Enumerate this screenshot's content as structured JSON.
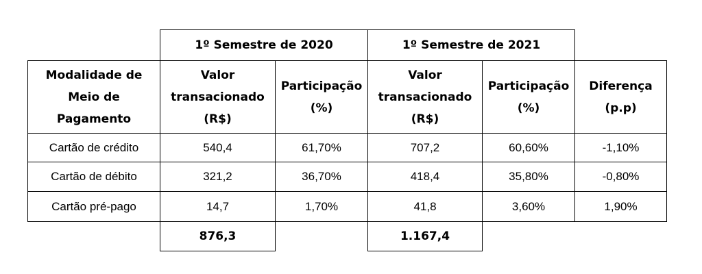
{
  "semesters": [
    {
      "label": "1º Semestre de 2020"
    },
    {
      "label": "1º Semestre de 2021"
    }
  ],
  "headers": {
    "modality": "Modalidade de\nMeio de\nPagamento",
    "value_2020": "Valor\ntransacionado\n(R$)",
    "share_2020": "Participação\n(%)",
    "value_2021": "Valor\ntransacionado\n(R$)",
    "share_2021": "Participação\n(%)",
    "difference": "Diferença\n(p.p)"
  },
  "rows": [
    {
      "modality": "Cartão de crédito",
      "value_2020": "540,4",
      "share_2020": "61,70%",
      "value_2021": "707,2",
      "share_2021": "60,60%",
      "difference": "-1,10%"
    },
    {
      "modality": "Cartão de débito",
      "value_2020": "321,2",
      "share_2020": "36,70%",
      "value_2021": "418,4",
      "share_2021": "35,80%",
      "difference": "-0,80%"
    },
    {
      "modality": "Cartão pré-pago",
      "value_2020": "14,7",
      "share_2020": "1,70%",
      "value_2021": "41,8",
      "share_2021": "3,60%",
      "difference": "1,90%"
    }
  ],
  "totals": {
    "value_2020": "876,3",
    "value_2021": "1.167,4"
  }
}
